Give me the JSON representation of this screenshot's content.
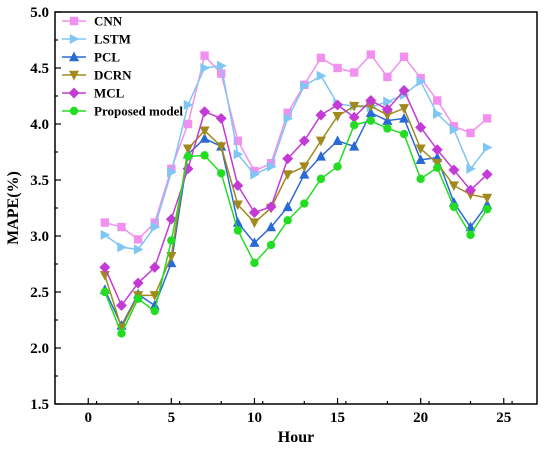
{
  "chart_data": {
    "type": "line",
    "title": "",
    "xlabel": "Hour",
    "ylabel": "MAPE(%)",
    "xlim": [
      -2,
      27
    ],
    "ylim": [
      1.5,
      5.0
    ],
    "xticks": [
      0,
      5,
      10,
      15,
      20,
      25
    ],
    "yticks": [
      1.5,
      2.0,
      2.5,
      3.0,
      3.5,
      4.0,
      4.5,
      5.0
    ],
    "xtick_labels": [
      "0",
      "5",
      "10",
      "15",
      "20",
      "25"
    ],
    "ytick_labels": [
      "1.5",
      "2.0",
      "2.5",
      "3.0",
      "3.5",
      "4.0",
      "4.5",
      "5.0"
    ],
    "grid": false,
    "legend_position": "top-left",
    "x": [
      1,
      2,
      3,
      4,
      5,
      6,
      7,
      8,
      9,
      10,
      11,
      12,
      13,
      14,
      15,
      16,
      17,
      18,
      19,
      20,
      21,
      22,
      23,
      24
    ],
    "series": [
      {
        "name": "CNN",
        "color": "#f290f0",
        "marker": "square",
        "values": [
          3.12,
          3.08,
          2.97,
          3.12,
          3.6,
          4.0,
          4.61,
          4.45,
          3.85,
          3.58,
          3.65,
          4.1,
          4.35,
          4.59,
          4.5,
          4.46,
          4.62,
          4.42,
          4.6,
          4.41,
          4.21,
          3.98,
          3.92,
          4.05
        ]
      },
      {
        "name": "LSTM",
        "color": "#7fc6f2",
        "marker": "triangle-right",
        "values": [
          3.01,
          2.9,
          2.88,
          3.08,
          3.57,
          4.17,
          4.5,
          4.52,
          3.73,
          3.55,
          3.62,
          4.05,
          4.34,
          4.43,
          4.18,
          4.16,
          4.15,
          4.2,
          4.26,
          4.38,
          4.09,
          3.95,
          3.6,
          3.79
        ]
      },
      {
        "name": "PCL",
        "color": "#2a6ad4",
        "marker": "triangle-up",
        "values": [
          2.52,
          2.2,
          2.48,
          2.38,
          2.76,
          3.73,
          3.87,
          3.8,
          3.12,
          2.94,
          3.08,
          3.26,
          3.55,
          3.71,
          3.85,
          3.8,
          4.1,
          4.03,
          4.05,
          3.68,
          3.7,
          3.3,
          3.08,
          3.28
        ]
      },
      {
        "name": "DCRN",
        "color": "#a08a1e",
        "marker": "triangle-down",
        "values": [
          2.65,
          2.18,
          2.47,
          2.47,
          2.82,
          3.78,
          3.94,
          3.8,
          3.28,
          3.12,
          3.25,
          3.55,
          3.62,
          3.85,
          4.07,
          4.16,
          4.16,
          4.08,
          4.14,
          3.78,
          3.65,
          3.45,
          3.37,
          3.34
        ]
      },
      {
        "name": "MCL",
        "color": "#c43ad6",
        "marker": "diamond",
        "values": [
          2.72,
          2.38,
          2.58,
          2.72,
          3.15,
          3.6,
          4.11,
          4.05,
          3.45,
          3.21,
          3.26,
          3.69,
          3.85,
          4.08,
          4.17,
          4.06,
          4.21,
          4.13,
          4.3,
          3.97,
          3.77,
          3.59,
          3.41,
          3.55
        ]
      },
      {
        "name": "Proposed model",
        "color": "#22dd22",
        "marker": "circle",
        "values": [
          2.5,
          2.13,
          2.44,
          2.33,
          2.96,
          3.71,
          3.72,
          3.56,
          3.05,
          2.76,
          2.92,
          3.14,
          3.29,
          3.51,
          3.62,
          3.99,
          4.03,
          3.96,
          3.91,
          3.51,
          3.61,
          3.26,
          3.01,
          3.24
        ]
      }
    ]
  }
}
